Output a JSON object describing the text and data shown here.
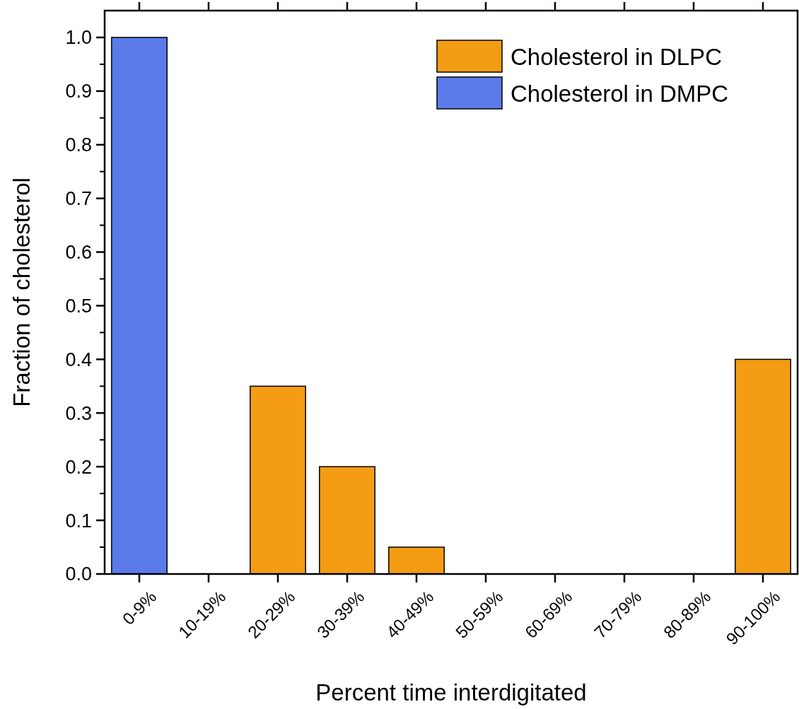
{
  "chart_data": {
    "type": "bar",
    "xlabel": "Percent time interdigitated",
    "ylabel": "Fraction of cholesterol",
    "categories": [
      "0-9%",
      "10-19%",
      "20-29%",
      "30-39%",
      "40-49%",
      "50-59%",
      "60-69%",
      "70-79%",
      "80-89%",
      "90-100%"
    ],
    "series": [
      {
        "name": "Cholesterol in DLPC",
        "color": "#f49c14",
        "values": [
          null,
          0,
          0.35,
          0.2,
          0.05,
          0,
          0,
          0,
          0,
          0.4
        ]
      },
      {
        "name": "Cholesterol in DMPC",
        "color": "#5b7be8",
        "values": [
          1.0,
          null,
          null,
          null,
          null,
          null,
          null,
          null,
          null,
          null
        ]
      }
    ],
    "ylim": [
      0,
      1.05
    ],
    "yticks": [
      {
        "value": 0,
        "label": "0.0"
      },
      0.1,
      0.2,
      0.3,
      0.4,
      0.5,
      0.6,
      0.7,
      0.8,
      0.9,
      {
        "value": 1,
        "label": "1.0"
      }
    ],
    "legend": "top right",
    "grid": false
  }
}
